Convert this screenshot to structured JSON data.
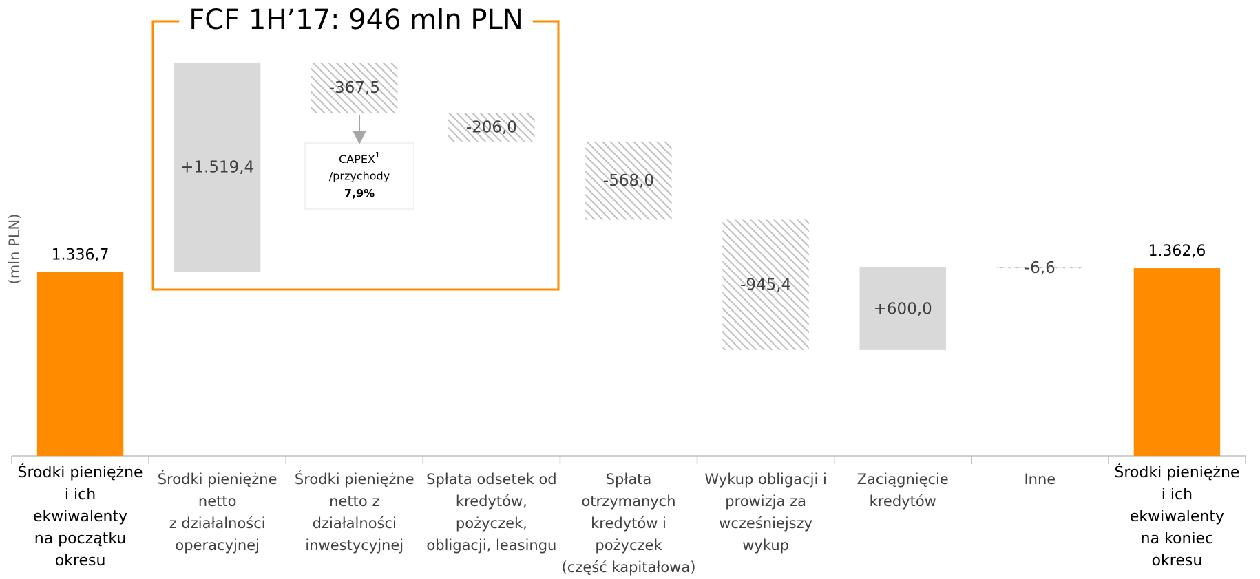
{
  "chart_data": {
    "type": "waterfall",
    "title": "FCF 1H’17: 946 mln PLN",
    "y_axis_label": "(mln PLN)",
    "categories": [
      [
        "Środki pieniężne",
        "i ich",
        "ekwiwalenty",
        "na początku",
        "okresu"
      ],
      [
        "Środki pieniężne",
        "netto",
        "z działalności",
        "operacyjnej"
      ],
      [
        "Środki pieniężne",
        "netto z",
        "działalności",
        "inwestycyjnej"
      ],
      [
        "Spłata odsetek od",
        "kredytów,",
        "pożyczek,",
        "obligacji, leasingu"
      ],
      [
        "Spłata",
        "otrzymanych",
        "kredytów i",
        "pożyczek",
        "(część kapitałowa)"
      ],
      [
        "Wykup obligacji i",
        "prowizja za",
        "wcześniejszy",
        "wykup"
      ],
      [
        "Zaciągnięcie",
        "kredytów"
      ],
      [
        "Inne"
      ],
      [
        "Środki pieniężne",
        "i ich",
        "ekwiwalenty",
        "na koniec",
        "okresu"
      ]
    ],
    "measure": [
      "total",
      "relative",
      "relative",
      "relative",
      "relative",
      "relative",
      "relative",
      "relative",
      "total"
    ],
    "values": [
      1336.7,
      1519.4,
      -367.5,
      -206.0,
      -568.0,
      -945.4,
      600.0,
      -6.6,
      1362.6
    ],
    "value_labels": [
      "1.336,7",
      "+1.519,4",
      "-367,5",
      "-206,0",
      "-568,0",
      "-945,4",
      "+600,0",
      "-6,6",
      "1.362,6"
    ],
    "total_color": "#ff8c00",
    "increase_color": "#d9d9d9",
    "decrease_color": "#bfbfbf",
    "ylim": [
      0,
      3300
    ],
    "capex_note": {
      "label": "CAPEX",
      "footnote": "1",
      "text": "/przychody",
      "value": "7,9%"
    }
  }
}
